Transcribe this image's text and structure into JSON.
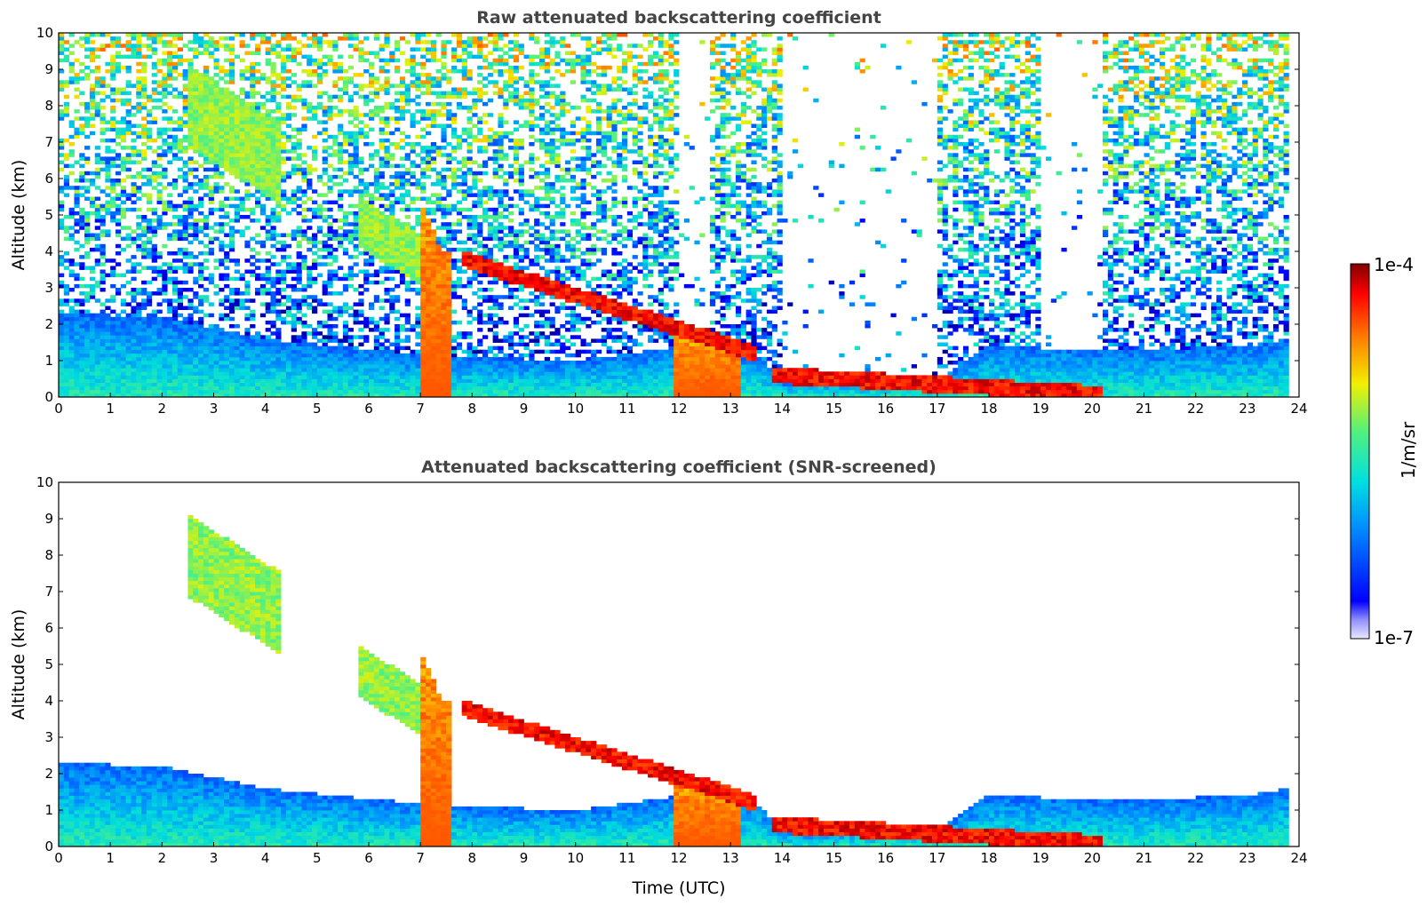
{
  "chart_data": [
    {
      "type": "heatmap",
      "title": "Raw attenuated backscattering coefficient",
      "xlabel": "",
      "ylabel": "Altitude (km)",
      "xlim": [
        0,
        24
      ],
      "ylim": [
        0,
        10
      ],
      "x_ticks": [
        "0",
        "1",
        "2",
        "3",
        "4",
        "5",
        "6",
        "7",
        "8",
        "9",
        "10",
        "11",
        "12",
        "13",
        "14",
        "15",
        "16",
        "17",
        "18",
        "19",
        "20",
        "21",
        "22",
        "23",
        "24"
      ],
      "y_ticks": [
        "0",
        "1",
        "2",
        "3",
        "4",
        "5",
        "6",
        "7",
        "8",
        "9",
        "10"
      ],
      "screened": false,
      "data_end_hour": 23.8,
      "boundary_layer_top_km": [
        [
          0,
          2.3
        ],
        [
          2,
          2.2
        ],
        [
          4,
          1.6
        ],
        [
          6,
          1.3
        ],
        [
          8,
          1.1
        ],
        [
          10,
          1.0
        ],
        [
          12,
          1.4
        ],
        [
          13.5,
          1.2
        ],
        [
          14,
          0.4
        ],
        [
          17,
          0.5
        ],
        [
          18,
          1.4
        ],
        [
          20,
          1.3
        ],
        [
          21,
          1.3
        ],
        [
          23,
          1.4
        ],
        [
          23.8,
          1.6
        ]
      ],
      "cloud_features_km": [
        {
          "t": [
            2.5,
            4.3
          ],
          "z": [
            4.8,
            8.0
          ],
          "level": "moderate"
        },
        {
          "t": [
            5.8,
            7.0
          ],
          "z": [
            2.8,
            4.8
          ],
          "level": "moderate"
        },
        {
          "t": [
            7.0,
            7.6
          ],
          "z": [
            0,
            4.0
          ],
          "level": "high"
        },
        {
          "t": [
            7.8,
            13.5
          ],
          "z": [
            1.2,
            3.8
          ],
          "level": "very high"
        },
        {
          "t": [
            11.9,
            13.2
          ],
          "z": [
            0,
            1.4
          ],
          "level": "high"
        },
        {
          "t": [
            13.8,
            20.2
          ],
          "z": [
            0.1,
            0.6
          ],
          "level": "very high"
        }
      ],
      "noise_free_periods": [
        [
          12.0,
          12.6
        ],
        [
          14.0,
          17.0
        ],
        [
          19.0,
          20.2
        ]
      ]
    },
    {
      "type": "heatmap",
      "title": "Attenuated backscattering coefficient (SNR-screened)",
      "xlabel": "Time (UTC)",
      "ylabel": "Altitude (km)",
      "xlim": [
        0,
        24
      ],
      "ylim": [
        0,
        10
      ],
      "x_ticks": [
        "0",
        "1",
        "2",
        "3",
        "4",
        "5",
        "6",
        "7",
        "8",
        "9",
        "10",
        "11",
        "12",
        "13",
        "14",
        "15",
        "16",
        "17",
        "18",
        "19",
        "20",
        "21",
        "22",
        "23",
        "24"
      ],
      "y_ticks": [
        "0",
        "1",
        "2",
        "3",
        "4",
        "5",
        "6",
        "7",
        "8",
        "9",
        "10"
      ],
      "screened": true,
      "data_end_hour": 23.8
    }
  ],
  "colorbar": {
    "label": "1/m/sr",
    "max_label": "1e-4",
    "min_label": "1e-7",
    "colormap": "jet",
    "scale": "log"
  },
  "colors": {
    "very_high": "#8b0000",
    "high": "#ff4000",
    "moderate": "#f0e020",
    "low": "#20d0c0",
    "very_low": "#1040ff",
    "minimum": "#0000a0"
  }
}
